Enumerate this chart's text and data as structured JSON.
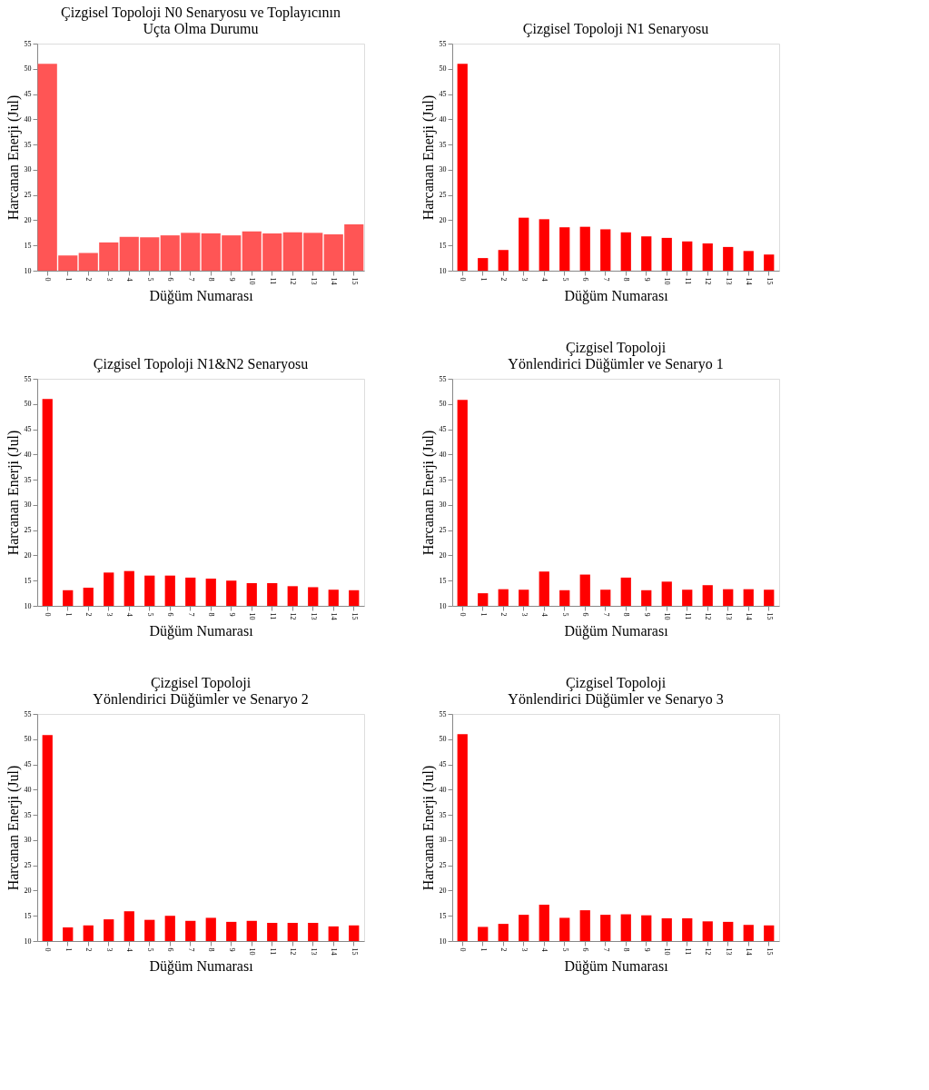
{
  "chart_data": [
    {
      "type": "bar",
      "title": "Çizgisel Topoloji N0 Senaryosu ve Toplayıcının\nUçta Olma Durumu",
      "xlabel": "Düğüm Numarası",
      "ylabel": "Harcanan Enerji (Jul)",
      "categories": [
        "0",
        "1",
        "2",
        "3",
        "4",
        "5",
        "6",
        "7",
        "8",
        "9",
        "10",
        "11",
        "12",
        "13",
        "14",
        "15"
      ],
      "color": "#ff5555",
      "values": [
        51,
        13,
        13.5,
        15.6,
        16.7,
        16.6,
        17,
        17.5,
        17.4,
        17,
        17.8,
        17.4,
        17.6,
        17.5,
        17.2,
        19.2
      ],
      "ylim": [
        10,
        55
      ],
      "yticks": [
        10,
        15,
        20,
        25,
        30,
        35,
        40,
        45,
        50,
        55
      ],
      "grid": false
    },
    {
      "type": "bar",
      "title": "Çizgisel Topoloji N1 Senaryosu",
      "xlabel": "Düğüm Numarası",
      "ylabel": "Harcanan Enerji (Jul)",
      "categories": [
        "0",
        "1",
        "2",
        "3",
        "4",
        "5",
        "6",
        "7",
        "8",
        "9",
        "10",
        "11",
        "12",
        "13",
        "14",
        "15"
      ],
      "color": "#ff0000",
      "values": [
        51,
        12.5,
        14.1,
        20.5,
        20.2,
        18.6,
        18.7,
        18.2,
        17.6,
        16.8,
        16.5,
        15.8,
        15.4,
        14.7,
        13.9,
        13.2
      ],
      "ylim": [
        10,
        55
      ],
      "yticks": [
        10,
        15,
        20,
        25,
        30,
        35,
        40,
        45,
        50,
        55
      ],
      "grid": false
    },
    {
      "type": "bar",
      "title": "Çizgisel Topoloji N1&N2 Senaryosu",
      "xlabel": "Düğüm Numarası",
      "ylabel": "Harcanan Enerji (Jul)",
      "categories": [
        "0",
        "1",
        "2",
        "3",
        "4",
        "5",
        "6",
        "7",
        "8",
        "9",
        "10",
        "11",
        "12",
        "13",
        "14",
        "15"
      ],
      "color": "#ff0000",
      "values": [
        51,
        13.1,
        13.6,
        16.6,
        16.9,
        16,
        16,
        15.6,
        15.4,
        15,
        14.5,
        14.5,
        13.9,
        13.7,
        13.2,
        13.1
      ],
      "ylim": [
        10,
        55
      ],
      "yticks": [
        10,
        15,
        20,
        25,
        30,
        35,
        40,
        45,
        50,
        55
      ],
      "grid": false
    },
    {
      "type": "bar",
      "title": "Çizgisel Topoloji\nYönlendirici Düğümler ve Senaryo 1",
      "xlabel": "Düğüm Numarası",
      "ylabel": "Harcanan Enerji (Jul)",
      "categories": [
        "0",
        "1",
        "2",
        "3",
        "4",
        "5",
        "6",
        "7",
        "8",
        "9",
        "10",
        "11",
        "12",
        "13",
        "14",
        "15"
      ],
      "color": "#ff0000",
      "values": [
        50.8,
        12.5,
        13.3,
        13.2,
        16.8,
        13.1,
        16.2,
        13.2,
        15.6,
        13.1,
        14.8,
        13.2,
        14.1,
        13.3,
        13.3,
        13.2
      ],
      "ylim": [
        10,
        55
      ],
      "yticks": [
        10,
        15,
        20,
        25,
        30,
        35,
        40,
        45,
        50,
        55
      ],
      "grid": false
    },
    {
      "type": "bar",
      "title": "Çizgisel Topoloji\nYönlendirici Düğümler ve Senaryo 2",
      "xlabel": "Düğüm Numarası",
      "ylabel": "Harcanan Enerji (Jul)",
      "categories": [
        "0",
        "1",
        "2",
        "3",
        "4",
        "5",
        "6",
        "7",
        "8",
        "9",
        "10",
        "11",
        "12",
        "13",
        "14",
        "15"
      ],
      "color": "#ff0000",
      "values": [
        50.8,
        12.7,
        13.1,
        14.3,
        15.9,
        14.2,
        15,
        14,
        14.6,
        13.8,
        14,
        13.6,
        13.6,
        13.6,
        12.9,
        13.1
      ],
      "ylim": [
        10,
        55
      ],
      "yticks": [
        10,
        15,
        20,
        25,
        30,
        35,
        40,
        45,
        50,
        55
      ],
      "grid": false
    },
    {
      "type": "bar",
      "title": "Çizgisel Topoloji\nYönlendirici Düğümler ve Senaryo 3",
      "xlabel": "Düğüm Numarası",
      "ylabel": "Harcanan Enerji (Jul)",
      "categories": [
        "0",
        "1",
        "2",
        "3",
        "4",
        "5",
        "6",
        "7",
        "8",
        "9",
        "10",
        "11",
        "12",
        "13",
        "14",
        "15"
      ],
      "color": "#ff0000",
      "values": [
        51,
        12.8,
        13.4,
        15.2,
        17.2,
        14.6,
        16.1,
        15.2,
        15.3,
        15.1,
        14.5,
        14.5,
        13.9,
        13.8,
        13.2,
        13.1
      ],
      "ylim": [
        10,
        55
      ],
      "yticks": [
        10,
        15,
        20,
        25,
        30,
        35,
        40,
        45,
        50,
        55
      ],
      "grid": false
    }
  ]
}
